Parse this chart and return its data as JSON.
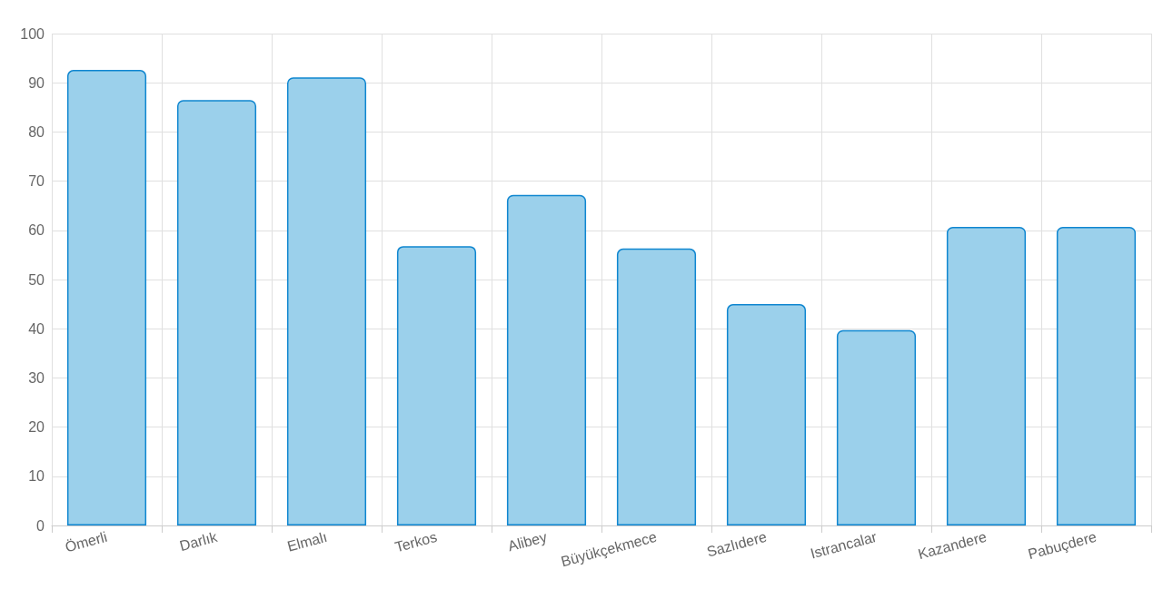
{
  "chart_data": {
    "type": "bar",
    "categories": [
      "Ömerli",
      "Darlık",
      "Elmalı",
      "Terkos",
      "Alibey",
      "Büyükçekmece",
      "Sazlıdere",
      "Istrancalar",
      "Kazandere",
      "Pabuçdere"
    ],
    "values": [
      92.6,
      86.5,
      91.1,
      56.8,
      67.2,
      56.3,
      45.0,
      39.7,
      60.7,
      60.7
    ],
    "color": "#9bd0eb",
    "ylim": [
      0,
      100
    ],
    "yticks": [
      0,
      10,
      20,
      30,
      40,
      50,
      60,
      70,
      80,
      90,
      100
    ],
    "grid": true
  }
}
